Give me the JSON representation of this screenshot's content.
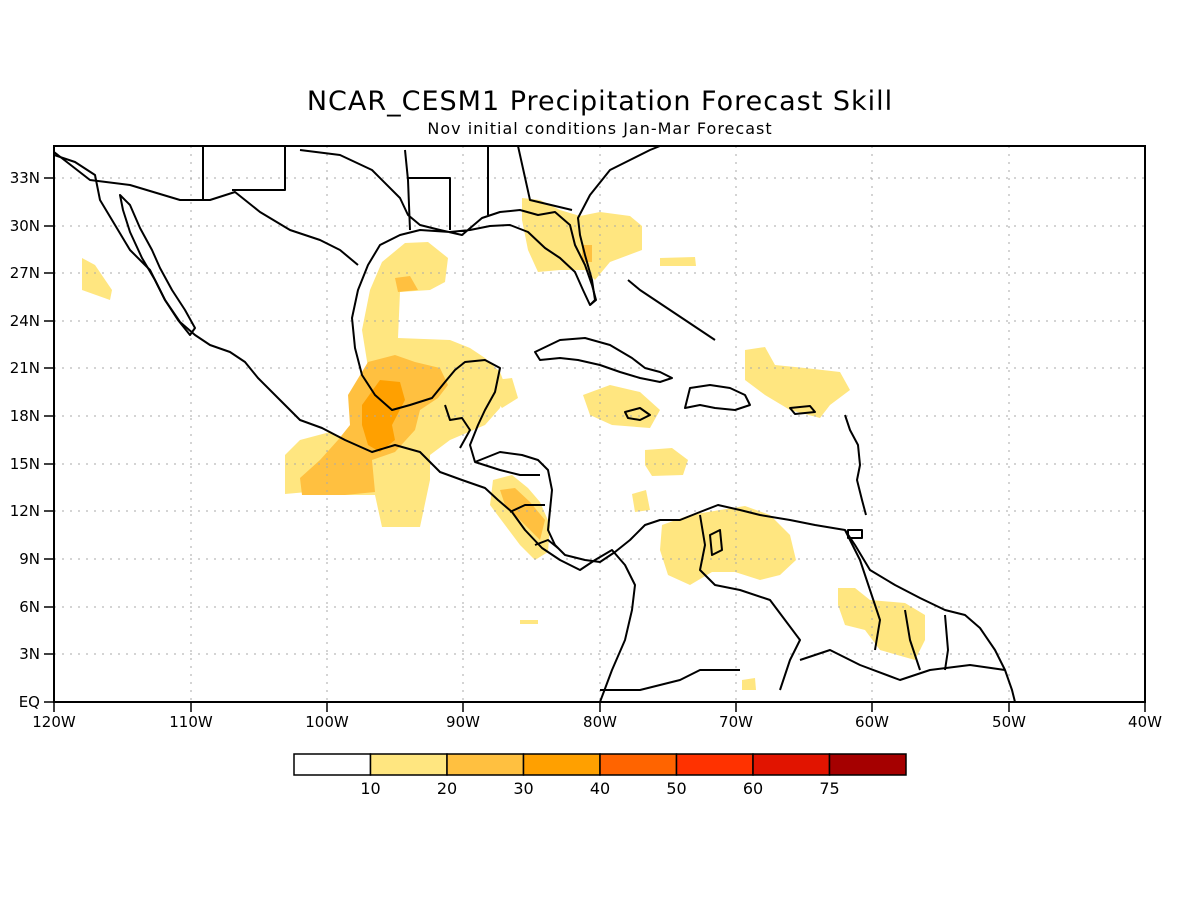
{
  "title": "NCAR_CESM1 Precipitation Forecast Skill",
  "subtitle": "Nov initial conditions   Jan-Mar Forecast",
  "map": {
    "lon_range": [
      -120,
      -40
    ],
    "lat_range": [
      0,
      35
    ],
    "grid": "dotted",
    "x_ticks": [
      "120W",
      "110W",
      "100W",
      "90W",
      "80W",
      "70W",
      "60W",
      "50W",
      "40W"
    ],
    "y_ticks": [
      "EQ",
      "3N",
      "6N",
      "9N",
      "12N",
      "15N",
      "18N",
      "21N",
      "24N",
      "27N",
      "30N",
      "33N"
    ]
  },
  "colorbar": {
    "labels": [
      "10",
      "20",
      "30",
      "40",
      "50",
      "60",
      "75"
    ],
    "colors": [
      "#ffffff",
      "#ffe680",
      "#ffc040",
      "#ffa000",
      "#ff6400",
      "#ff3200",
      "#e11400",
      "#a50000"
    ]
  },
  "chart_data": {
    "type": "heatmap",
    "title": "NCAR_CESM1 Precipitation Forecast Skill",
    "subtitle": "Nov initial conditions   Jan-Mar Forecast",
    "x_range": [
      -120,
      -40
    ],
    "y_range": [
      0,
      35
    ],
    "levels": [
      10,
      20,
      30,
      40,
      50,
      60,
      75
    ],
    "regions": [
      {
        "level": 10,
        "area": "Gulf of Mexico western coast to southern Mexico"
      },
      {
        "level": 10,
        "area": "Florida and southeastern US"
      },
      {
        "level": 10,
        "area": "Central America Pacific coast"
      },
      {
        "level": 10,
        "area": "Northern South America / Venezuela"
      },
      {
        "level": 10,
        "area": "Guyana / Suriname"
      },
      {
        "level": 10,
        "area": "Caribbean near Puerto Rico"
      },
      {
        "level": 20,
        "area": "Southern Mexico / Bay of Campeche"
      },
      {
        "level": 30,
        "area": "Isthmus of Tehuantepec"
      }
    ]
  }
}
